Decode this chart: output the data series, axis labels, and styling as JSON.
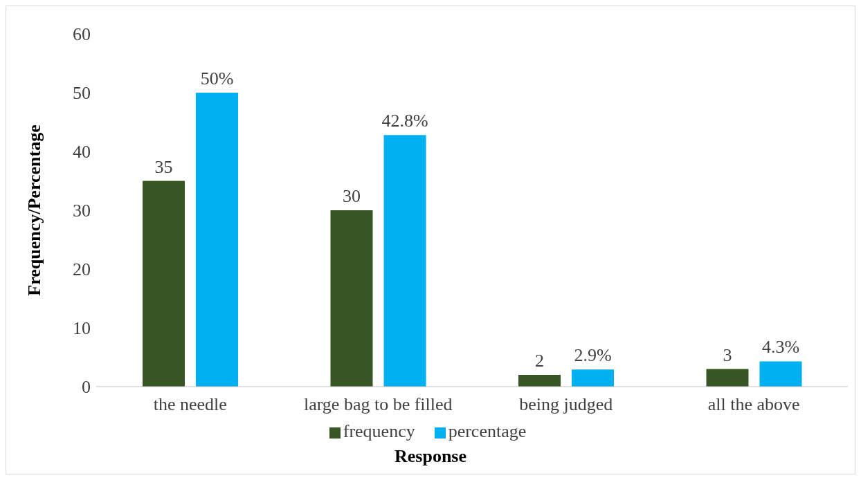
{
  "chart_data": {
    "type": "bar",
    "xlabel": "Response",
    "ylabel": "Frequency/Percentage",
    "categories": [
      "the needle",
      "large bag to be filled",
      "being judged",
      "all the above"
    ],
    "series": [
      {
        "name": "frequency",
        "color": "#375623",
        "values": [
          35,
          30,
          2,
          3
        ],
        "value_labels": [
          "35",
          "30",
          "2",
          "3"
        ]
      },
      {
        "name": "percentage",
        "color": "#00b0f0",
        "values": [
          50,
          42.8,
          2.9,
          4.3
        ],
        "value_labels": [
          "50%",
          "42.8%",
          "2.9%",
          "4.3%"
        ]
      }
    ],
    "ylim": [
      0,
      60
    ],
    "yticks": [
      0,
      10,
      20,
      30,
      40,
      50,
      60
    ],
    "grid": false,
    "legend": "bottom"
  }
}
